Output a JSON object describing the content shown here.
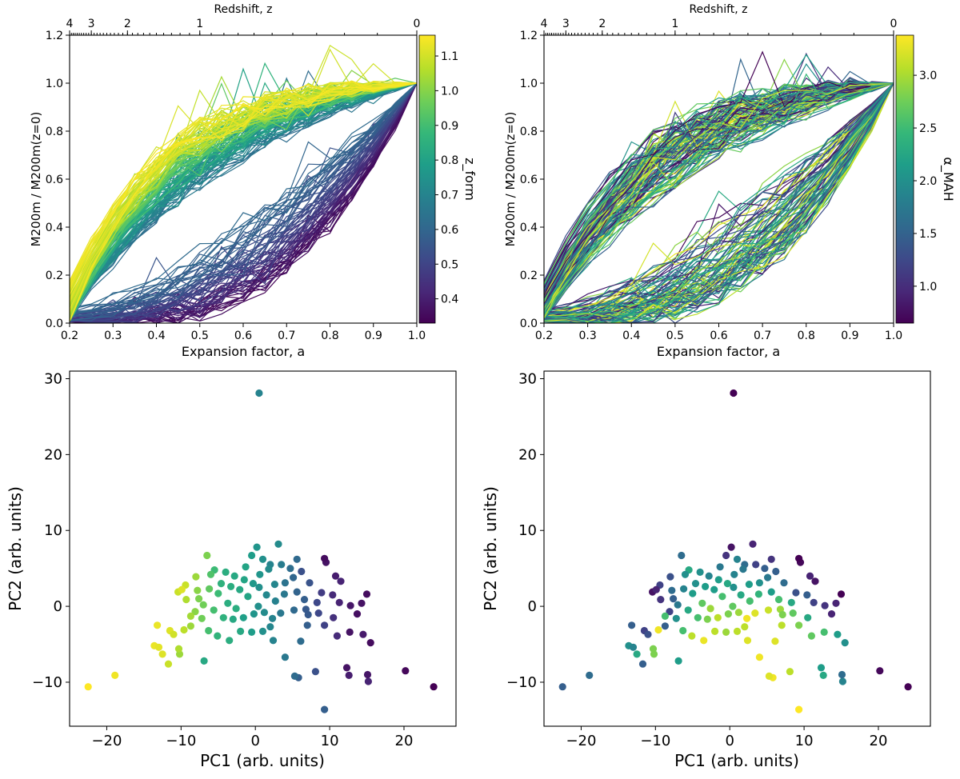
{
  "figure": {
    "description_panels": [
      "mah-zform",
      "mah-alpha",
      "pca-zform",
      "pca-alpha"
    ]
  },
  "colors": {
    "viridis": [
      "#440154",
      "#482878",
      "#3e4989",
      "#31688e",
      "#26828e",
      "#1f9e89",
      "#35b779",
      "#6ece58",
      "#b5de2b",
      "#fde725"
    ]
  },
  "chart_data": [
    {
      "type": "line",
      "id": "mah_zform",
      "xlabel": "Expansion factor, a",
      "ylabel": "M200m / M200m(z=0)",
      "top_axis_label": "Redshift, z",
      "top_ticks": [
        {
          "label": "4",
          "a": 0.2
        },
        {
          "label": "3",
          "a": 0.25
        },
        {
          "label": "2",
          "a": 0.3333
        },
        {
          "label": "1",
          "a": 0.5
        },
        {
          "label": "0",
          "a": 1.0
        }
      ],
      "xlim": [
        0.2,
        1.0
      ],
      "ylim": [
        0.0,
        1.2
      ],
      "xticks": [
        "0.2",
        "0.3",
        "0.4",
        "0.5",
        "0.6",
        "0.7",
        "0.8",
        "0.9",
        "1.0"
      ],
      "yticks": [
        "0.0",
        "0.2",
        "0.4",
        "0.6",
        "0.8",
        "1.0",
        "1.2"
      ],
      "colorbar": {
        "label": "z_form",
        "range": [
          0.33,
          1.16
        ],
        "ticks": [
          "0.4",
          "0.5",
          "0.6",
          "0.7",
          "0.8",
          "0.9",
          "1.0",
          "1.1"
        ]
      },
      "n_curves": 200,
      "x_sample": [
        0.2,
        0.25,
        0.3,
        0.35,
        0.4,
        0.45,
        0.5,
        0.55,
        0.6,
        0.65,
        0.7,
        0.75,
        0.8,
        0.85,
        0.9,
        0.95,
        1.0
      ]
    },
    {
      "type": "line",
      "id": "mah_alpha",
      "xlabel": "Expansion factor, a",
      "ylabel": "M200m / M200m(z=0)",
      "top_axis_label": "Redshift, z",
      "top_ticks": [
        {
          "label": "4",
          "a": 0.2
        },
        {
          "label": "3",
          "a": 0.25
        },
        {
          "label": "2",
          "a": 0.3333
        },
        {
          "label": "1",
          "a": 0.5
        },
        {
          "label": "0",
          "a": 1.0
        }
      ],
      "xlim": [
        0.2,
        1.0
      ],
      "ylim": [
        0.0,
        1.2
      ],
      "xticks": [
        "0.2",
        "0.3",
        "0.4",
        "0.5",
        "0.6",
        "0.7",
        "0.8",
        "0.9",
        "1.0"
      ],
      "yticks": [
        "0.0",
        "0.2",
        "0.4",
        "0.6",
        "0.8",
        "1.0",
        "1.2"
      ],
      "colorbar": {
        "label": "α_MAH",
        "range": [
          0.65,
          3.38
        ],
        "ticks": [
          "1.0",
          "1.5",
          "2.0",
          "2.5",
          "3.0"
        ]
      },
      "n_curves": 200,
      "x_sample": [
        0.2,
        0.25,
        0.3,
        0.35,
        0.4,
        0.45,
        0.5,
        0.55,
        0.6,
        0.65,
        0.7,
        0.75,
        0.8,
        0.85,
        0.9,
        0.95,
        1.0
      ]
    },
    {
      "type": "scatter",
      "id": "pca_zform",
      "xlabel": "PC1 (arb. units)",
      "ylabel": "PC2 (arb. units)",
      "xlim": [
        -25,
        27
      ],
      "ylim": [
        -15.8,
        31
      ],
      "xticks": [
        "-20",
        "-10",
        "0",
        "10",
        "20"
      ],
      "yticks": [
        "-10",
        "0",
        "10",
        "20",
        "30"
      ],
      "color_by": "z_form",
      "points": [
        [
          0.5,
          28.1,
          0.45
        ],
        [
          -22.5,
          -10.6,
          1.0
        ],
        [
          -18.9,
          -9.1,
          0.98
        ],
        [
          24.0,
          -10.6,
          0.0
        ],
        [
          20.2,
          -8.5,
          0.02
        ],
        [
          9.3,
          -13.6,
          0.3
        ],
        [
          15.2,
          -9.9,
          0.1
        ],
        [
          15.1,
          -9.0,
          0.06
        ],
        [
          12.6,
          -9.1,
          0.08
        ],
        [
          12.3,
          -8.1,
          0.05
        ],
        [
          5.8,
          -9.4,
          0.3
        ],
        [
          5.3,
          -9.2,
          0.35
        ],
        [
          8.1,
          -8.6,
          0.25
        ],
        [
          -11.7,
          -7.6,
          0.92
        ],
        [
          -12.5,
          -6.3,
          0.95
        ],
        [
          -10.2,
          -6.3,
          0.85
        ],
        [
          -6.9,
          -7.2,
          0.6
        ],
        [
          -13.6,
          -5.2,
          0.97
        ],
        [
          -13.0,
          -5.4,
          0.96
        ],
        [
          -10.3,
          -5.6,
          0.88
        ],
        [
          15.5,
          -4.8,
          0.03
        ],
        [
          14.5,
          -3.7,
          0.07
        ],
        [
          12.7,
          -3.4,
          0.05
        ],
        [
          11.0,
          -3.9,
          0.12
        ],
        [
          9.3,
          -2.5,
          0.2
        ],
        [
          7.0,
          -2.5,
          0.3
        ],
        [
          6.1,
          -4.6,
          0.35
        ],
        [
          2.4,
          -4.5,
          0.45
        ],
        [
          1.0,
          -3.3,
          0.5
        ],
        [
          -0.5,
          -3.4,
          0.55
        ],
        [
          -2.0,
          -3.3,
          0.6
        ],
        [
          -3.5,
          -4.5,
          0.62
        ],
        [
          -5.1,
          -3.9,
          0.65
        ],
        [
          -6.3,
          -3.2,
          0.7
        ],
        [
          -7.2,
          -1.6,
          0.78
        ],
        [
          -8.7,
          -2.6,
          0.85
        ],
        [
          -9.6,
          -3.1,
          0.9
        ],
        [
          -11.5,
          -3.2,
          0.95
        ],
        [
          -11.0,
          -3.7,
          0.93
        ],
        [
          -13.2,
          -2.5,
          0.97
        ],
        [
          13.7,
          -1.0,
          0.04
        ],
        [
          12.8,
          0.1,
          0.06
        ],
        [
          11.3,
          0.5,
          0.1
        ],
        [
          10.4,
          1.5,
          0.12
        ],
        [
          8.9,
          1.8,
          0.18
        ],
        [
          8.3,
          0.5,
          0.22
        ],
        [
          6.8,
          -0.4,
          0.28
        ],
        [
          5.2,
          -0.5,
          0.34
        ],
        [
          3.4,
          -0.9,
          0.4
        ],
        [
          2.3,
          -1.6,
          0.45
        ],
        [
          1.2,
          -0.8,
          0.48
        ],
        [
          -0.2,
          -1.0,
          0.52
        ],
        [
          -1.6,
          -1.5,
          0.56
        ],
        [
          -3.0,
          -1.7,
          0.6
        ],
        [
          -4.3,
          -1.5,
          0.64
        ],
        [
          -5.6,
          -0.5,
          0.7
        ],
        [
          -7.0,
          0.2,
          0.78
        ],
        [
          -8.1,
          -0.7,
          0.82
        ],
        [
          -9.3,
          0.9,
          0.88
        ],
        [
          -10.4,
          1.9,
          0.92
        ],
        [
          15.0,
          1.6,
          0.03
        ],
        [
          14.3,
          0.4,
          0.05
        ],
        [
          11.5,
          3.3,
          0.1
        ],
        [
          10.8,
          4.0,
          0.08
        ],
        [
          9.5,
          5.8,
          0.05
        ],
        [
          9.3,
          6.3,
          0.03
        ],
        [
          6.2,
          4.6,
          0.25
        ],
        [
          5.1,
          3.8,
          0.33
        ],
        [
          4.0,
          3.1,
          0.38
        ],
        [
          3.1,
          8.2,
          0.48
        ],
        [
          2.0,
          5.5,
          0.45
        ],
        [
          1.0,
          6.2,
          0.5
        ],
        [
          0.2,
          7.8,
          0.52
        ],
        [
          -0.5,
          6.7,
          0.55
        ],
        [
          -1.3,
          5.2,
          0.58
        ],
        [
          -2.8,
          4.0,
          0.6
        ],
        [
          -4.0,
          4.5,
          0.62
        ],
        [
          -5.5,
          4.8,
          0.68
        ],
        [
          -6.5,
          6.7,
          0.8
        ],
        [
          -8.0,
          3.9,
          0.85
        ],
        [
          -9.4,
          2.8,
          0.92
        ],
        [
          -9.9,
          2.2,
          0.95
        ],
        [
          -2.1,
          2.2,
          0.6
        ],
        [
          -1.0,
          1.3,
          0.58
        ],
        [
          0.5,
          2.5,
          0.5
        ],
        [
          1.5,
          1.5,
          0.47
        ],
        [
          2.7,
          0.7,
          0.44
        ],
        [
          3.9,
          1.6,
          0.4
        ],
        [
          5.6,
          1.9,
          0.32
        ],
        [
          7.3,
          3.1,
          0.26
        ],
        [
          -3.7,
          0.4,
          0.62
        ],
        [
          -5.0,
          1.7,
          0.68
        ],
        [
          -6.2,
          2.3,
          0.75
        ],
        [
          -7.6,
          1.0,
          0.8
        ],
        [
          -1.5,
          3.5,
          0.58
        ],
        [
          0.6,
          4.2,
          0.52
        ],
        [
          2.6,
          2.9,
          0.46
        ],
        [
          4.7,
          5.0,
          0.36
        ],
        [
          6.6,
          0.9,
          0.3
        ],
        [
          8.5,
          -0.9,
          0.22
        ],
        [
          10.5,
          -1.5,
          0.14
        ],
        [
          4.0,
          -6.7,
          0.4
        ],
        [
          -2.6,
          -0.3,
          0.62
        ],
        [
          -4.6,
          3.0,
          0.64
        ],
        [
          1.8,
          4.9,
          0.48
        ],
        [
          3.5,
          5.5,
          0.42
        ],
        [
          -0.3,
          3.0,
          0.53
        ],
        [
          -3.3,
          2.6,
          0.62
        ],
        [
          5.6,
          6.2,
          0.34
        ],
        [
          7.1,
          -1.1,
          0.28
        ],
        [
          -6.0,
          4.2,
          0.72
        ],
        [
          -7.8,
          2.1,
          0.82
        ],
        [
          -8.7,
          -1.3,
          0.86
        ],
        [
          0.4,
          0.0,
          0.5
        ],
        [
          2.0,
          -2.7,
          0.46
        ]
      ]
    },
    {
      "type": "scatter",
      "id": "pca_alpha",
      "xlabel": "PC1 (arb. units)",
      "ylabel": "PC2 (arb. units)",
      "xlim": [
        -25,
        27
      ],
      "ylim": [
        -15.8,
        31
      ],
      "xticks": [
        "-20",
        "-10",
        "0",
        "10",
        "20"
      ],
      "yticks": [
        "-10",
        "0",
        "10",
        "20",
        "30"
      ],
      "color_by": "alpha_MAH",
      "points": [
        [
          0.5,
          28.1,
          0.0
        ],
        [
          -22.5,
          -10.6,
          0.3
        ],
        [
          -18.9,
          -9.1,
          0.35
        ],
        [
          24.0,
          -10.6,
          0.0
        ],
        [
          20.2,
          -8.5,
          0.02
        ],
        [
          9.3,
          -13.6,
          1.0
        ],
        [
          15.2,
          -9.9,
          0.45
        ],
        [
          15.1,
          -9.0,
          0.35
        ],
        [
          12.6,
          -9.1,
          0.6
        ],
        [
          12.3,
          -8.1,
          0.55
        ],
        [
          5.8,
          -9.4,
          0.98
        ],
        [
          5.3,
          -9.2,
          0.95
        ],
        [
          8.1,
          -8.6,
          0.9
        ],
        [
          -11.7,
          -7.6,
          0.3
        ],
        [
          -12.5,
          -6.3,
          0.6
        ],
        [
          -10.2,
          -6.3,
          0.8
        ],
        [
          -6.9,
          -7.2,
          0.55
        ],
        [
          -13.6,
          -5.2,
          0.5
        ],
        [
          -13.0,
          -5.4,
          0.45
        ],
        [
          -10.3,
          -5.6,
          0.8
        ],
        [
          15.5,
          -4.8,
          0.5
        ],
        [
          14.5,
          -3.7,
          0.55
        ],
        [
          12.7,
          -3.4,
          0.7
        ],
        [
          11.0,
          -3.9,
          0.75
        ],
        [
          9.3,
          -2.5,
          0.8
        ],
        [
          7.0,
          -2.5,
          0.9
        ],
        [
          6.1,
          -4.6,
          0.95
        ],
        [
          2.4,
          -4.5,
          0.95
        ],
        [
          1.0,
          -3.3,
          0.9
        ],
        [
          -0.5,
          -3.4,
          0.85
        ],
        [
          -2.0,
          -3.3,
          0.9
        ],
        [
          -3.5,
          -4.5,
          0.97
        ],
        [
          -5.1,
          -3.9,
          0.9
        ],
        [
          -6.3,
          -3.2,
          0.7
        ],
        [
          -7.2,
          -1.6,
          0.5
        ],
        [
          -8.7,
          -2.6,
          0.3
        ],
        [
          -9.6,
          -3.1,
          0.98
        ],
        [
          -11.5,
          -3.2,
          0.2
        ],
        [
          -11.0,
          -3.7,
          0.25
        ],
        [
          -13.2,
          -2.5,
          0.3
        ],
        [
          13.7,
          -1.0,
          0.1
        ],
        [
          12.8,
          0.1,
          0.15
        ],
        [
          11.3,
          0.5,
          0.2
        ],
        [
          10.4,
          1.5,
          0.3
        ],
        [
          8.9,
          1.8,
          0.25
        ],
        [
          8.3,
          0.5,
          0.6
        ],
        [
          6.8,
          -0.4,
          0.85
        ],
        [
          5.2,
          -0.5,
          0.92
        ],
        [
          3.4,
          -0.9,
          0.95
        ],
        [
          2.3,
          -1.6,
          0.98
        ],
        [
          1.2,
          -0.8,
          0.85
        ],
        [
          -0.2,
          -1.0,
          0.8
        ],
        [
          -1.6,
          -1.5,
          0.9
        ],
        [
          -3.0,
          -1.7,
          0.8
        ],
        [
          -4.3,
          -1.5,
          0.7
        ],
        [
          -5.6,
          -0.5,
          0.6
        ],
        [
          -7.0,
          0.2,
          0.4
        ],
        [
          -8.1,
          -0.7,
          0.2
        ],
        [
          -9.3,
          0.9,
          0.15
        ],
        [
          -10.4,
          1.9,
          0.05
        ],
        [
          15.0,
          1.6,
          0.0
        ],
        [
          14.3,
          0.4,
          0.1
        ],
        [
          11.5,
          3.3,
          0.05
        ],
        [
          10.8,
          4.0,
          0.1
        ],
        [
          9.5,
          5.8,
          0.02
        ],
        [
          9.3,
          6.3,
          0.0
        ],
        [
          6.2,
          4.6,
          0.3
        ],
        [
          5.1,
          3.8,
          0.4
        ],
        [
          4.0,
          3.1,
          0.5
        ],
        [
          3.1,
          8.2,
          0.1
        ],
        [
          2.0,
          5.5,
          0.35
        ],
        [
          1.0,
          6.2,
          0.45
        ],
        [
          0.2,
          7.8,
          0.05
        ],
        [
          -0.5,
          6.7,
          0.15
        ],
        [
          -1.3,
          5.2,
          0.4
        ],
        [
          -2.8,
          4.0,
          0.45
        ],
        [
          -4.0,
          4.5,
          0.5
        ],
        [
          -5.5,
          4.8,
          0.6
        ],
        [
          -6.5,
          6.7,
          0.35
        ],
        [
          -8.0,
          3.9,
          0.25
        ],
        [
          -9.4,
          2.8,
          0.2
        ],
        [
          -9.9,
          2.2,
          0.1
        ],
        [
          -2.1,
          2.2,
          0.55
        ],
        [
          -1.0,
          1.3,
          0.7
        ],
        [
          0.5,
          2.5,
          0.5
        ],
        [
          1.5,
          1.5,
          0.6
        ],
        [
          2.7,
          0.7,
          0.7
        ],
        [
          3.9,
          1.6,
          0.65
        ],
        [
          5.6,
          1.9,
          0.55
        ],
        [
          7.3,
          3.1,
          0.35
        ],
        [
          -3.7,
          0.4,
          0.75
        ],
        [
          -5.0,
          1.7,
          0.55
        ],
        [
          -6.2,
          2.3,
          0.45
        ],
        [
          -7.6,
          1.0,
          0.3
        ],
        [
          -1.5,
          3.5,
          0.55
        ],
        [
          0.6,
          4.2,
          0.45
        ],
        [
          2.6,
          2.9,
          0.55
        ],
        [
          4.7,
          5.0,
          0.3
        ],
        [
          6.6,
          0.9,
          0.7
        ],
        [
          8.5,
          -0.9,
          0.75
        ],
        [
          10.5,
          -1.5,
          0.6
        ],
        [
          4.0,
          -6.7,
          0.98
        ],
        [
          -2.6,
          -0.3,
          0.85
        ],
        [
          -4.6,
          3.0,
          0.5
        ],
        [
          1.8,
          4.9,
          0.4
        ],
        [
          3.5,
          5.5,
          0.2
        ],
        [
          -0.3,
          3.0,
          0.6
        ],
        [
          -3.3,
          2.6,
          0.55
        ],
        [
          5.6,
          6.2,
          0.15
        ],
        [
          7.1,
          -1.1,
          0.8
        ],
        [
          -6.0,
          4.2,
          0.5
        ],
        [
          -7.8,
          2.1,
          0.35
        ],
        [
          -8.7,
          -1.3,
          0.7
        ],
        [
          0.4,
          0.0,
          0.75
        ],
        [
          2.0,
          -2.7,
          0.9
        ]
      ]
    }
  ]
}
